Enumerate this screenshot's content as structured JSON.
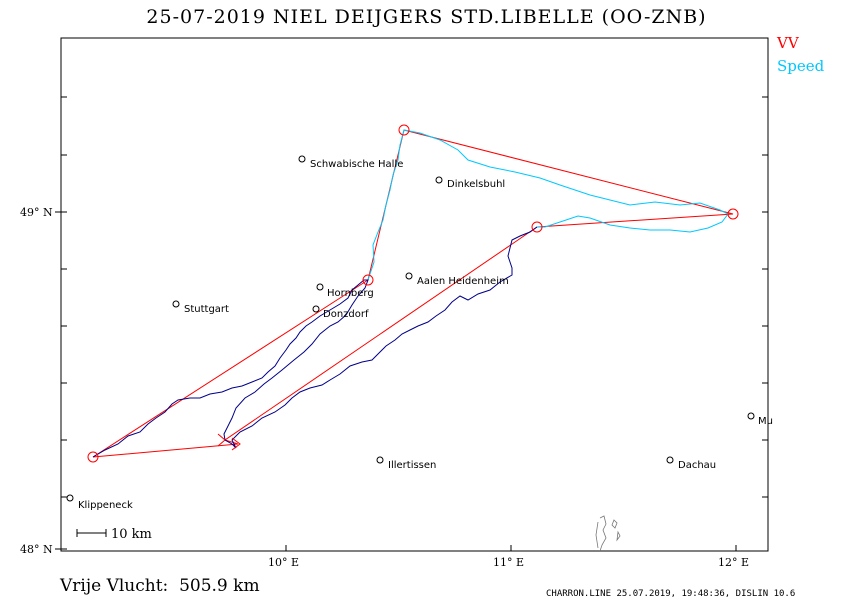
{
  "title": "25-07-2019   NIEL DEIJGERS   STD.LIBELLE (OO-ZNB)",
  "legend": {
    "vv": "VV",
    "speed": "Speed",
    "vv_color": "#ff0000",
    "speed_color": "#00c8ff",
    "track_color": "#00008b"
  },
  "axes": {
    "lat_labels": [
      "49° N",
      "48° N"
    ],
    "lon_labels": [
      "10° E",
      "11° E",
      "12° E"
    ]
  },
  "scale_bar": "10 km",
  "distance_text": "Vrije Vlucht:  505.9 km",
  "footer": "CHARRON.LINE 25.07.2019, 19:48:36, DISLIN 10.6",
  "places": [
    {
      "name": "Schwabische Halle"
    },
    {
      "name": "Dinkelsbuhl"
    },
    {
      "name": "Hornberg"
    },
    {
      "name": "Aalen Heidenheim"
    },
    {
      "name": "Stuttgart"
    },
    {
      "name": "Donzdorf"
    },
    {
      "name": "Illertissen"
    },
    {
      "name": "Dachau"
    },
    {
      "name": "Klippeneck"
    },
    {
      "name": "Mu"
    }
  ],
  "turnpoints": [
    "start",
    "tp1",
    "tp2",
    "tp3",
    "tp4",
    "tp5"
  ]
}
